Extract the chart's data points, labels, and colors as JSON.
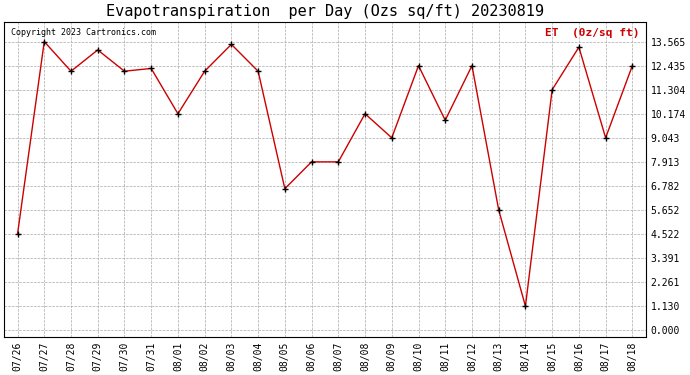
{
  "title": "Evapotranspiration  per Day (Ozs sq/ft) 20230819",
  "legend_label": "ET  (0z/sq ft)",
  "copyright_text": "Copyright 2023 Cartronics.com",
  "dates": [
    "07/26",
    "07/27",
    "07/28",
    "07/29",
    "07/30",
    "07/31",
    "08/01",
    "08/02",
    "08/03",
    "08/04",
    "08/05",
    "08/06",
    "08/07",
    "08/08",
    "08/09",
    "08/10",
    "08/11",
    "08/12",
    "08/13",
    "08/14",
    "08/15",
    "08/16",
    "08/17",
    "08/18"
  ],
  "values": [
    4.522,
    13.565,
    12.174,
    13.174,
    12.174,
    12.304,
    10.174,
    12.174,
    13.435,
    12.174,
    6.652,
    7.913,
    7.913,
    10.174,
    9.043,
    12.435,
    9.87,
    12.435,
    5.652,
    1.13,
    11.304,
    13.304,
    9.043,
    12.435
  ],
  "yticks": [
    0.0,
    1.13,
    2.261,
    3.391,
    4.522,
    5.652,
    6.782,
    7.913,
    9.043,
    10.174,
    11.304,
    12.435,
    13.565
  ],
  "line_color": "#cc0000",
  "marker_color": "#000000",
  "background_color": "#ffffff",
  "grid_color": "#aaaaaa",
  "title_fontsize": 11,
  "legend_color": "#cc0000",
  "copyright_color": "#000000",
  "tick_fontsize": 7,
  "copyright_fontsize": 6,
  "legend_fontsize": 8
}
